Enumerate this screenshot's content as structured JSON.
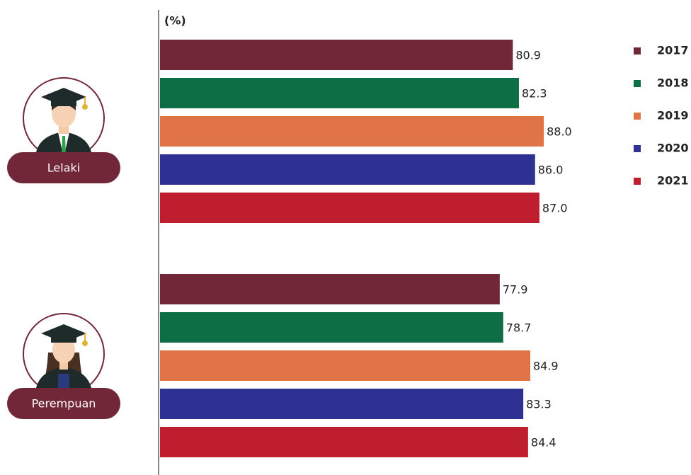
{
  "chart_data": {
    "type": "hbar",
    "unit": "(%)",
    "categories": [
      "Lelaki",
      "Perempuan"
    ],
    "series": [
      {
        "name": "2017",
        "color": "#722739",
        "values": [
          80.9,
          77.9
        ],
        "value_labels": [
          "80.9",
          "77.9"
        ]
      },
      {
        "name": "2018",
        "color": "#0d6e45",
        "values": [
          82.3,
          78.7
        ],
        "value_labels": [
          "82.3",
          "78.7"
        ]
      },
      {
        "name": "2019",
        "color": "#e07447",
        "values": [
          88,
          84.9
        ],
        "value_labels": [
          "88.0",
          "84.9"
        ]
      },
      {
        "name": "2020",
        "color": "#2e3192",
        "values": [
          86,
          83.3
        ],
        "value_labels": [
          "86.0",
          "83.3"
        ]
      },
      {
        "name": "2021",
        "color": "#be1e2d",
        "values": [
          87,
          84.4
        ],
        "value_labels": [
          "87.0",
          "84.4"
        ]
      }
    ],
    "xlim": [
      0,
      100
    ],
    "legend": "right"
  }
}
